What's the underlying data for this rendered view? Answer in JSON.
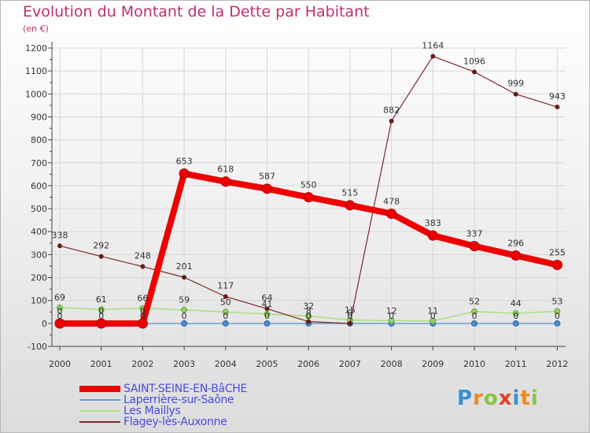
{
  "header": {
    "title": "Evolution du Montant de la Dette par Habitant",
    "subtitle": "(en €)"
  },
  "chart_data": {
    "type": "line",
    "title": "Evolution du Montant de la Dette par Habitant",
    "ylabel": "(en €)",
    "xlabel": "",
    "ylim": [
      -100,
      1200
    ],
    "yticks": [
      -100,
      0,
      100,
      200,
      300,
      400,
      500,
      600,
      700,
      800,
      900,
      1000,
      1100,
      1200
    ],
    "grid": true,
    "legend_position": "bottom-left",
    "categories": [
      "2000",
      "2001",
      "2002",
      "2003",
      "2004",
      "2005",
      "2006",
      "2007",
      "2008",
      "2009",
      "2010",
      "2011",
      "2012"
    ],
    "series": [
      {
        "name": "Laperrière-sur-Saône",
        "color": "#6b9fd4",
        "values": [
          0,
          0,
          0,
          0,
          0,
          0,
          0,
          0,
          0,
          0,
          0,
          0,
          0
        ],
        "labels": [
          "0",
          "0",
          "0",
          "0",
          "0",
          "0",
          "0",
          "0",
          "0",
          "0",
          "0",
          "0",
          "0"
        ]
      },
      {
        "name": "Les Maillys",
        "color": "#a8e080",
        "values": [
          69,
          61,
          66,
          59,
          50,
          41,
          32,
          15,
          12,
          11,
          52,
          44,
          53
        ],
        "labels": [
          "69",
          "61",
          "66",
          "59",
          "50",
          "41",
          "32",
          "15",
          "12",
          "11",
          "52",
          "44",
          "53"
        ]
      },
      {
        "name": "Flagey-lès-Auxonne",
        "color": "#7a2a2a",
        "values": [
          338,
          292,
          248,
          201,
          117,
          64,
          8,
          0,
          882,
          1164,
          1096,
          999,
          943
        ],
        "labels": [
          "338",
          "292",
          "248",
          "201",
          "117",
          "64",
          "8",
          "0",
          "882",
          "1164",
          "1096",
          "999",
          "943"
        ]
      },
      {
        "name": "SAINT-SEINE-EN-BâCHE",
        "color": "#ee0000",
        "values": [
          0,
          0,
          0,
          653,
          618,
          587,
          550,
          515,
          478,
          383,
          337,
          296,
          255
        ],
        "labels": [
          "0",
          "0",
          "0",
          "653",
          "618",
          "587",
          "550",
          "515",
          "478",
          "383",
          "337",
          "296",
          "255"
        ]
      }
    ],
    "legend": [
      "SAINT-SEINE-EN-BâCHE",
      "Laperrière-sur-Saône",
      "Les Maillys",
      "Flagey-lès-Auxonne"
    ]
  },
  "logo": {
    "letters": [
      "P",
      "r",
      "o",
      "x",
      "i",
      "t",
      "i"
    ],
    "colors": [
      "#3a8fd0",
      "#f08a1c",
      "#86c63a",
      "#e2402a",
      "#3a8fd0",
      "#f08a1c",
      "#86c63a"
    ]
  }
}
